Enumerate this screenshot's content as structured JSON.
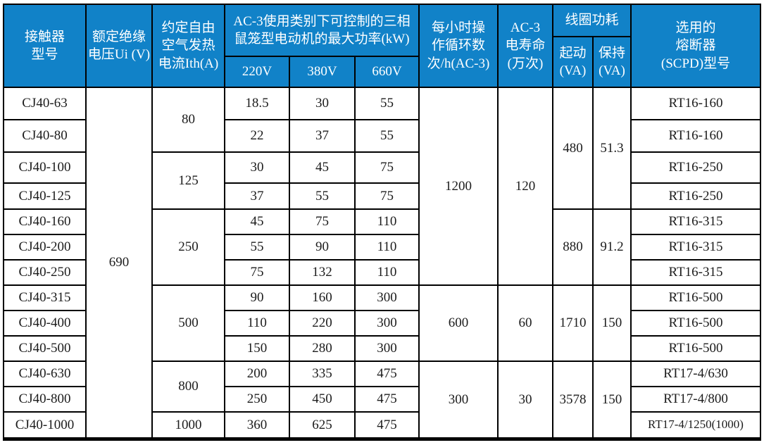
{
  "colors": {
    "header_bg": "#1182c8",
    "border": "#000000",
    "body_text": "#1c1c1c"
  },
  "header": {
    "contactor_model": "接触器\n型号",
    "rated_insulation_voltage": "额定绝缘\n电压Ui (V)",
    "conventional_thermal_current": "约定自由\n空气发热\n电流Ith(A)",
    "ac3_max_power": "AC-3使用类别下可控制的三相\n鼠笼型电动机的最大功率(kW)",
    "v220": "220V",
    "v380": "380V",
    "v660": "660V",
    "cycles_per_hour": "每小时操\n作循环数\n次/h(AC-3)",
    "electrical_life": "AC-3\n电寿命\n(万次)",
    "coil_power": "线圈功耗",
    "coil_start": "起动\n(VA)",
    "coil_hold": "保持\n(VA)",
    "fuse": "选用的\n熔断器\n(SCPD)型号"
  },
  "merged": {
    "voltage": "690",
    "ith": [
      "80",
      "125",
      "250",
      "500",
      "800",
      "1000"
    ],
    "cycles": [
      "1200",
      "600",
      "300"
    ],
    "life": [
      "120",
      "60",
      "30"
    ],
    "coil": [
      {
        "start": "480",
        "hold": "51.3"
      },
      {
        "start": "880",
        "hold": "91.2"
      },
      {
        "start": "1710",
        "hold": "150"
      },
      {
        "start": "3578",
        "hold": "150"
      }
    ]
  },
  "rows": [
    {
      "model": "CJ40-63",
      "p220": "18.5",
      "p380": "30",
      "p660": "55",
      "fuse": "RT16-160"
    },
    {
      "model": "CJ40-80",
      "p220": "22",
      "p380": "37",
      "p660": "55",
      "fuse": "RT16-160"
    },
    {
      "model": "CJ40-100",
      "p220": "30",
      "p380": "45",
      "p660": "75",
      "fuse": "RT16-250"
    },
    {
      "model": "CJ40-125",
      "p220": "37",
      "p380": "55",
      "p660": "75",
      "fuse": "RT16-250"
    },
    {
      "model": "CJ40-160",
      "p220": "45",
      "p380": "75",
      "p660": "110",
      "fuse": "RT16-315"
    },
    {
      "model": "CJ40-200",
      "p220": "55",
      "p380": "90",
      "p660": "110",
      "fuse": "RT16-315"
    },
    {
      "model": "CJ40-250",
      "p220": "75",
      "p380": "132",
      "p660": "110",
      "fuse": "RT16-315"
    },
    {
      "model": "CJ40-315",
      "p220": "90",
      "p380": "160",
      "p660": "300",
      "fuse": "RT16-500"
    },
    {
      "model": "CJ40-400",
      "p220": "110",
      "p380": "220",
      "p660": "300",
      "fuse": "RT16-500"
    },
    {
      "model": "CJ40-500",
      "p220": "150",
      "p380": "280",
      "p660": "300",
      "fuse": "RT16-500"
    },
    {
      "model": "CJ40-630",
      "p220": "200",
      "p380": "335",
      "p660": "475",
      "fuse": "RT17-4/630"
    },
    {
      "model": "CJ40-800",
      "p220": "250",
      "p380": "450",
      "p660": "475",
      "fuse": "RT17-4/800"
    },
    {
      "model": "CJ40-1000",
      "p220": "360",
      "p380": "625",
      "p660": "475",
      "fuse": "RT17-4/1250(1000)"
    }
  ]
}
